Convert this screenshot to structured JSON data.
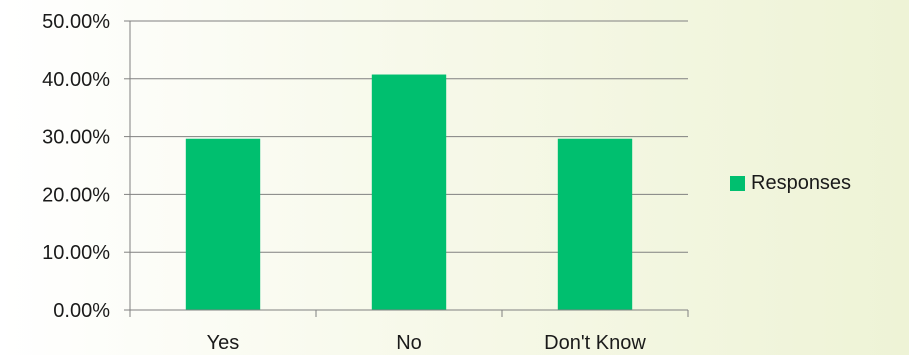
{
  "chart_data": {
    "type": "bar",
    "title": "",
    "xlabel": "",
    "ylabel": "",
    "categories": [
      "Yes",
      "No",
      "Don't Know"
    ],
    "series": [
      {
        "name": "Responses",
        "values": [
          29.63,
          40.74,
          29.63
        ],
        "color": "#00bf6f"
      }
    ],
    "ylim": [
      0,
      50
    ],
    "y_ticks": [
      0,
      10,
      20,
      30,
      40,
      50
    ],
    "y_tick_format": "percent_2dp",
    "grid": true,
    "legend_position": "right"
  },
  "colors": {
    "gridline": "#808080",
    "axis": "#808080",
    "bar": "#00bf6f"
  }
}
